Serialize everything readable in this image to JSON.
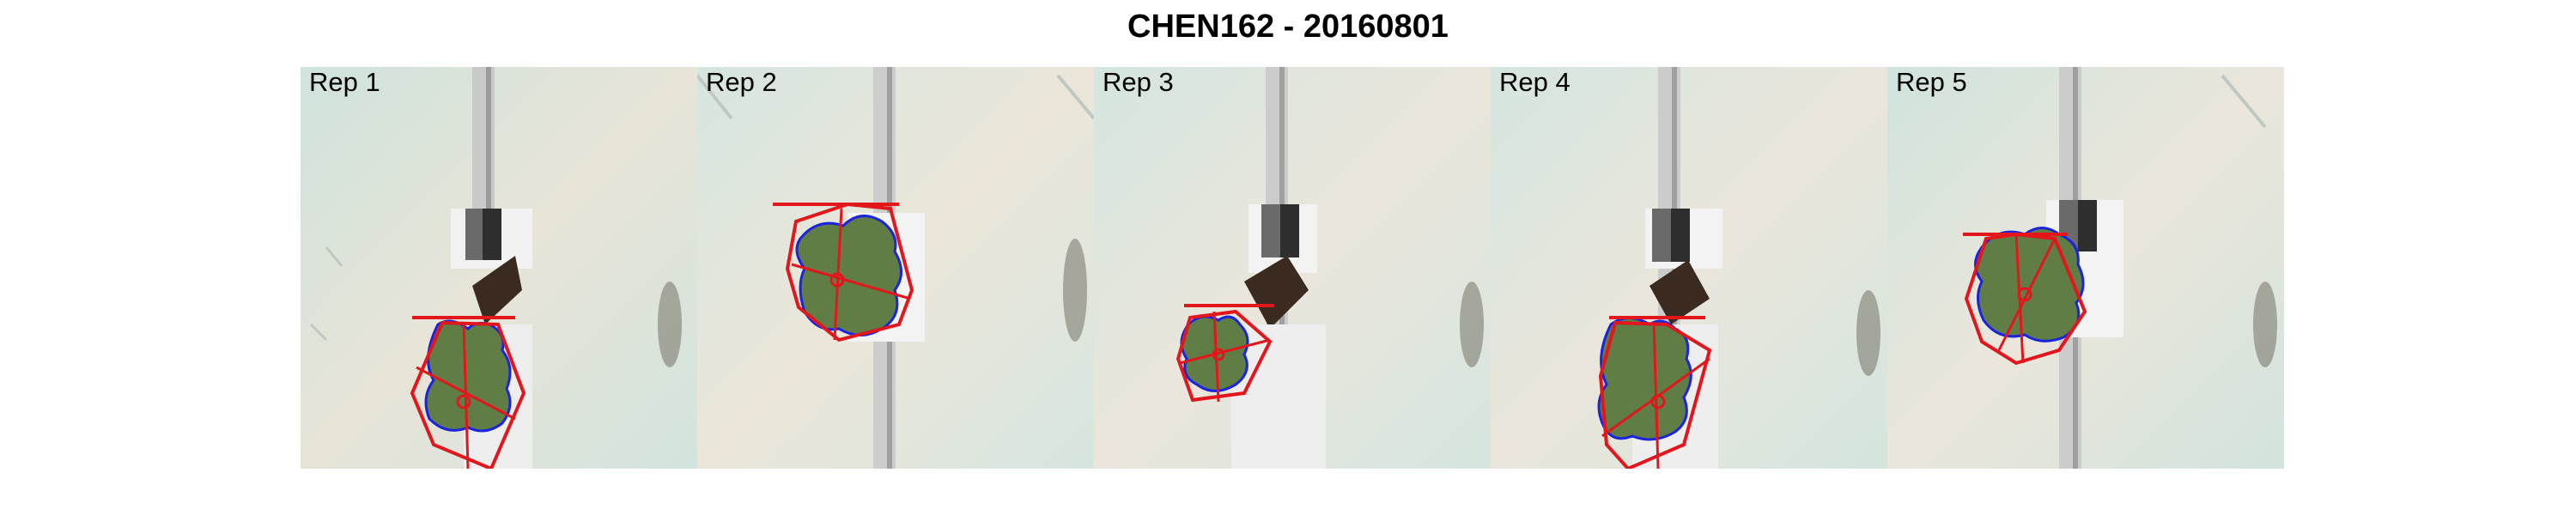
{
  "title": "CHEN162 - 20160801",
  "panels": [
    {
      "label": "Rep 1"
    },
    {
      "label": "Rep 2"
    },
    {
      "label": "Rep 3"
    },
    {
      "label": "Rep 4"
    },
    {
      "label": "Rep 5"
    }
  ],
  "colors": {
    "background_tint": "#d6e6df",
    "floor_light": "#e9e2d6",
    "rail": "#c8c8c8",
    "card_white": "#f4f4f4",
    "card_dark": "#3a3a3a",
    "soil": "#3b2a20",
    "leaf": "#5f7d45",
    "contour": "#1a24e0",
    "hull": "#e3161c"
  },
  "icons": []
}
